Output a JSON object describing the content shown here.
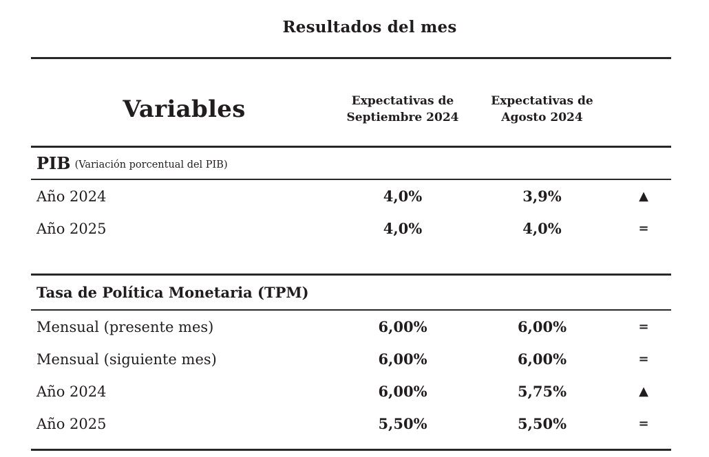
{
  "page": {
    "title": "Resultados del mes"
  },
  "table": {
    "header": {
      "variables": "Variables",
      "col_september": {
        "line1": "Expectativas de",
        "line2": "Septiembre 2024"
      },
      "col_august": {
        "line1": "Expectativas de",
        "line2": "Agosto 2024"
      }
    },
    "sections": [
      {
        "title": "PIB",
        "subtitle": "(Variación porcentual del PIB)",
        "rows": [
          {
            "label": "Año 2024",
            "september": "4,0%",
            "august": "3,9%",
            "change": "up",
            "symbol": "▲"
          },
          {
            "label": "Año 2025",
            "september": "4,0%",
            "august": "4,0%",
            "change": "equal",
            "symbol": "="
          }
        ]
      },
      {
        "title": "Tasa de Política Monetaria (TPM)",
        "rows": [
          {
            "label": "Mensual (presente mes)",
            "september": "6,00%",
            "august": "6,00%",
            "change": "equal",
            "symbol": "="
          },
          {
            "label": "Mensual (siguiente mes)",
            "september": "6,00%",
            "august": "6,00%",
            "change": "equal",
            "symbol": "="
          },
          {
            "label": "Año 2024",
            "september": "6,00%",
            "august": "5,75%",
            "change": "up",
            "symbol": "▲"
          },
          {
            "label": "Año 2025",
            "september": "5,50%",
            "august": "5,50%",
            "change": "equal",
            "symbol": "="
          }
        ]
      }
    ]
  },
  "colors": {
    "text": "#211d1e",
    "rule": "#2a2526",
    "background": "#ffffff"
  }
}
